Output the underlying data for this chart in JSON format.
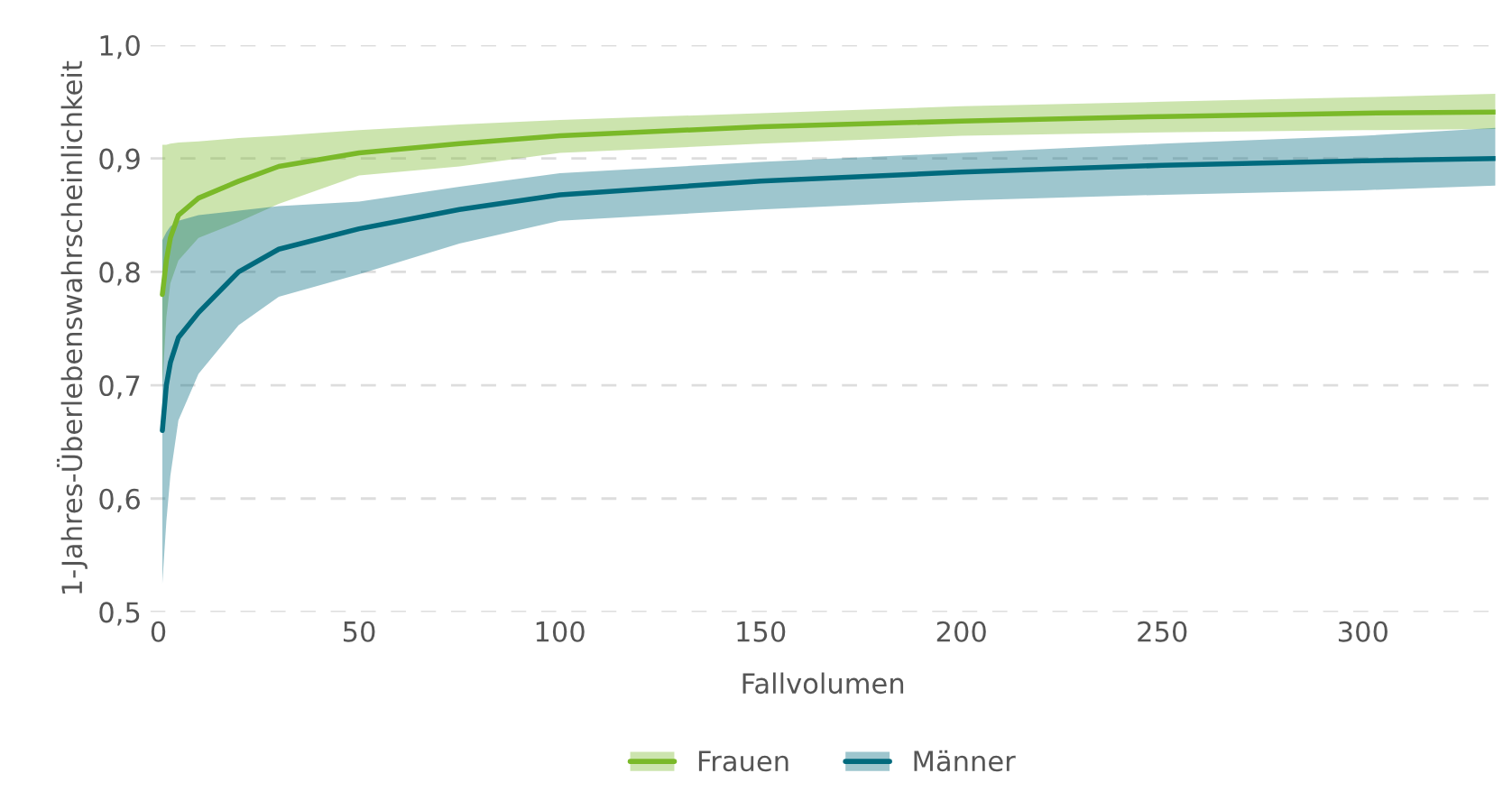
{
  "chart_data": {
    "type": "line",
    "xlabel": "Fallvolumen",
    "ylabel": "1-Jahres-Überlebenswahrscheinlichkeit",
    "x": [
      1,
      2,
      3,
      5,
      10,
      20,
      30,
      50,
      75,
      100,
      150,
      200,
      250,
      300,
      333
    ],
    "series": [
      {
        "name": "Frauen",
        "color": "#7ab929",
        "values": [
          0.78,
          0.81,
          0.83,
          0.85,
          0.865,
          0.88,
          0.893,
          0.905,
          0.913,
          0.92,
          0.928,
          0.933,
          0.937,
          0.94,
          0.941
        ],
        "lower": [
          0.7,
          0.76,
          0.79,
          0.81,
          0.83,
          0.844,
          0.86,
          0.885,
          0.893,
          0.905,
          0.913,
          0.92,
          0.923,
          0.925,
          0.926
        ],
        "upper": [
          0.912,
          0.912,
          0.913,
          0.914,
          0.915,
          0.918,
          0.92,
          0.925,
          0.93,
          0.934,
          0.94,
          0.946,
          0.95,
          0.954,
          0.957
        ]
      },
      {
        "name": "Männer",
        "color": "#006a7d",
        "values": [
          0.66,
          0.7,
          0.72,
          0.742,
          0.764,
          0.8,
          0.82,
          0.838,
          0.855,
          0.868,
          0.88,
          0.888,
          0.894,
          0.898,
          0.9
        ],
        "lower": [
          0.525,
          0.58,
          0.62,
          0.669,
          0.71,
          0.753,
          0.778,
          0.798,
          0.825,
          0.845,
          0.855,
          0.863,
          0.868,
          0.872,
          0.876
        ],
        "upper": [
          0.828,
          0.835,
          0.84,
          0.845,
          0.85,
          0.854,
          0.858,
          0.862,
          0.875,
          0.887,
          0.897,
          0.905,
          0.913,
          0.92,
          0.927
        ]
      }
    ],
    "xlim": [
      -2,
      333
    ],
    "ylim": [
      0.5,
      1.0
    ],
    "xticks": [
      0,
      50,
      100,
      150,
      200,
      250,
      300
    ],
    "yticks": [
      {
        "value": 0.5,
        "label": "0,5"
      },
      {
        "value": 0.6,
        "label": "0,6"
      },
      {
        "value": 0.7,
        "label": "0,7"
      },
      {
        "value": 0.8,
        "label": "0,8"
      },
      {
        "value": 0.9,
        "label": "0,9"
      },
      {
        "value": 1.0,
        "label": "1,0"
      }
    ],
    "grid": "y",
    "legend": "bottom",
    "marker": "none",
    "line_style": "solid"
  }
}
